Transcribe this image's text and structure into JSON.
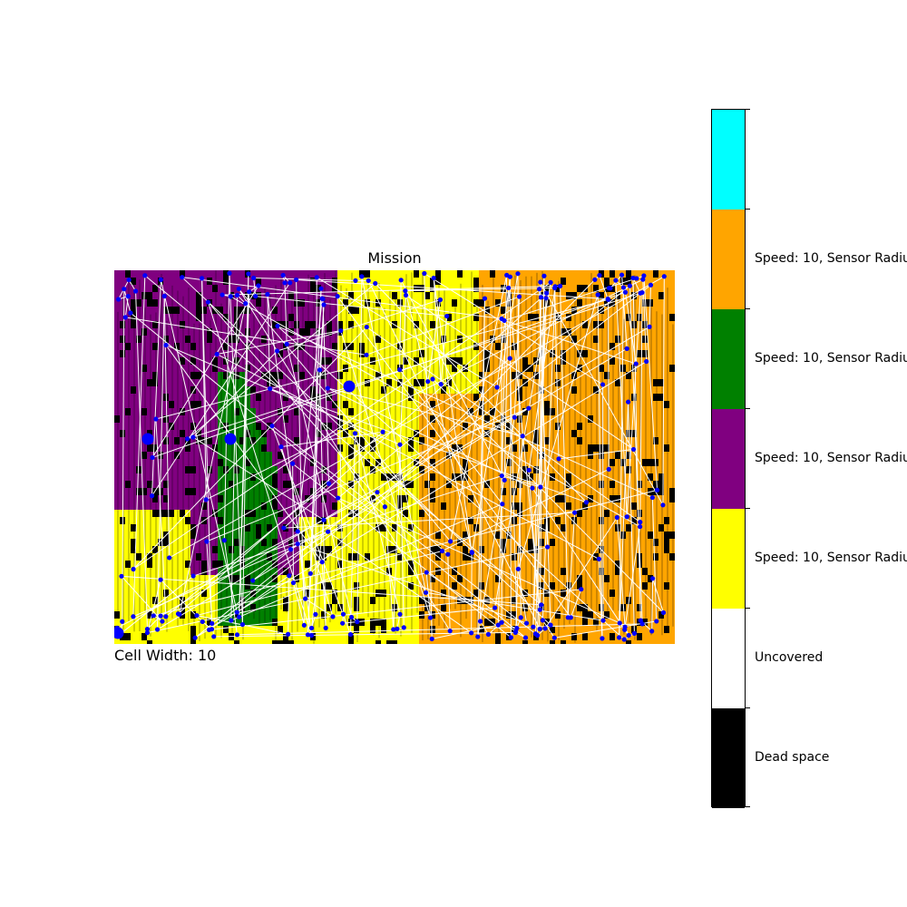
{
  "chart_data": {
    "type": "heatmap",
    "title": "Mission",
    "annotation": "Cell Width: 10",
    "xlabel": "",
    "ylabel": "",
    "grid": false,
    "legend": {
      "kind": "colorbar",
      "placement": "right",
      "entries": [
        {
          "label": "",
          "color": "#00ffff"
        },
        {
          "label": "Speed: 10, Sensor Radiu",
          "color": "#ffa500"
        },
        {
          "label": "Speed: 10, Sensor Radiu",
          "color": "#008000"
        },
        {
          "label": "Speed: 10, Sensor Radiu",
          "color": "#800080"
        },
        {
          "label": "Speed: 10, Sensor Radiu",
          "color": "#ffff00"
        },
        {
          "label": "Uncovered",
          "color": "#ffffff"
        },
        {
          "label": "Dead space",
          "color": "#000000"
        }
      ]
    },
    "regions": [
      {
        "name": "purple",
        "color": "#800080"
      },
      {
        "name": "yellow",
        "color": "#ffff00"
      },
      {
        "name": "green",
        "color": "#008000"
      },
      {
        "name": "orange",
        "color": "#ffa500"
      }
    ],
    "dead_space_color": "#000000",
    "path_color": "#ffffff",
    "waypoint_color": "#0000ff"
  }
}
